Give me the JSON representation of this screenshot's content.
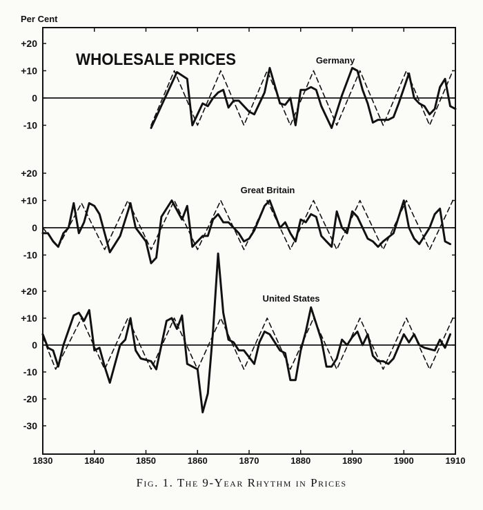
{
  "figure": {
    "caption": "Fig. 1. The 9-Year Rhythm in Prices",
    "title": "WHOLESALE PRICES",
    "y_unit_label": "Per Cent"
  },
  "colors": {
    "ink": "#111111",
    "paper": "#fbfbf8"
  },
  "chart_data": [
    {
      "type": "line",
      "panel": "Germany",
      "label": "Germany",
      "xlim": [
        1830,
        1910
      ],
      "ylim": [
        -15,
        25
      ],
      "ytick_labels": [
        "+20",
        "+10",
        "0",
        "-10"
      ],
      "yticks": [
        20,
        10,
        0,
        -10
      ],
      "series": [
        {
          "style": "solid",
          "x": [
            1851,
            1856,
            1858,
            1859,
            1861,
            1862,
            1863,
            1864,
            1865,
            1866,
            1867,
            1868,
            1870,
            1871,
            1873,
            1874,
            1876,
            1877,
            1878,
            1879,
            1880,
            1881,
            1882,
            1883,
            1884,
            1886,
            1888,
            1890,
            1891,
            1892,
            1893,
            1894,
            1895,
            1897,
            1898,
            1899,
            1901,
            1902,
            1903,
            1904,
            1905,
            1906,
            1907,
            1908,
            1909,
            1910
          ],
          "y": [
            -11,
            9.5,
            7,
            -10,
            -2,
            -3,
            0,
            2,
            3,
            -3.5,
            -1,
            -1,
            -5,
            -6,
            2,
            11,
            -2,
            -2.5,
            0,
            -10,
            3,
            3,
            4,
            3,
            -3,
            -11,
            1,
            11,
            10,
            3,
            -2,
            -9,
            -8,
            -8,
            -7,
            -2,
            9,
            0,
            -2,
            -3,
            -6,
            -4,
            4,
            7,
            -3,
            -4
          ]
        },
        {
          "style": "dashed",
          "x": [
            1851,
            1855.5,
            1860,
            1864.5,
            1869,
            1873.5,
            1878,
            1882.5,
            1887,
            1891.5,
            1896,
            1900.5,
            1905,
            1909.5
          ],
          "y": [
            -10,
            10,
            -10,
            10,
            -10,
            10,
            -10,
            10,
            -10,
            10,
            -10,
            10,
            -10,
            10
          ]
        }
      ]
    },
    {
      "type": "line",
      "panel": "Great Britain",
      "label": "Great Britain",
      "xlim": [
        1830,
        1910
      ],
      "ylim": [
        -15,
        25
      ],
      "ytick_labels": [
        "+20",
        "+10",
        "0",
        "-10"
      ],
      "yticks": [
        20,
        10,
        0,
        -10
      ],
      "series": [
        {
          "style": "solid",
          "x": [
            1830,
            1831,
            1832,
            1833,
            1834,
            1835,
            1836,
            1837,
            1838,
            1839,
            1840,
            1841,
            1843,
            1845,
            1847,
            1848,
            1850,
            1851,
            1852,
            1853,
            1855,
            1857,
            1858,
            1859,
            1861,
            1862,
            1863,
            1864,
            1865,
            1866,
            1867,
            1868,
            1869,
            1870,
            1871,
            1873,
            1874,
            1876,
            1877,
            1878,
            1879,
            1880,
            1881,
            1882,
            1883,
            1884,
            1885,
            1886,
            1887,
            1888,
            1889,
            1890,
            1891,
            1892,
            1893,
            1894,
            1895,
            1896,
            1898,
            1900,
            1901,
            1902,
            1903,
            1904,
            1905,
            1906,
            1907,
            1908,
            1909
          ],
          "y": [
            -2,
            -2,
            -5,
            -7,
            -2,
            0,
            9,
            -2,
            2,
            9,
            8,
            5,
            -9,
            -3,
            9,
            0,
            -5,
            -13,
            -11,
            4,
            10,
            3,
            8,
            -7,
            -3,
            -3,
            3,
            5,
            2,
            2,
            0,
            -2,
            -5,
            -4,
            -1,
            8,
            10,
            0,
            2,
            -2,
            -5,
            3,
            2,
            5,
            4,
            -3,
            -5,
            -7,
            6,
            0,
            -2,
            6,
            4,
            0,
            -4,
            -5,
            -7,
            -5,
            -2,
            10,
            0,
            -4,
            -6,
            -3,
            0,
            5,
            7,
            -5,
            -6
          ]
        },
        {
          "style": "dashed",
          "x": [
            1830,
            1833,
            1837.5,
            1842,
            1846.5,
            1851,
            1855.5,
            1860,
            1864.5,
            1869,
            1873.5,
            1878,
            1882.5,
            1887,
            1891.5,
            1896,
            1900.5,
            1905,
            1909.5
          ],
          "y": [
            0,
            -7,
            9,
            -8,
            10,
            -8,
            10,
            -8,
            10,
            -8,
            10,
            -8,
            10,
            -8,
            10,
            -8,
            10,
            -8,
            10
          ]
        }
      ]
    },
    {
      "type": "line",
      "panel": "United States",
      "label": "United States",
      "xlim": [
        1830,
        1910
      ],
      "ylim": [
        -35,
        30
      ],
      "ytick_labels": [
        "+20",
        "+10",
        "0",
        "-10",
        "-20",
        "-30"
      ],
      "yticks": [
        20,
        10,
        0,
        -10,
        -20,
        -30
      ],
      "series": [
        {
          "style": "solid",
          "x": [
            1830,
            1831,
            1832,
            1833,
            1834,
            1836,
            1837,
            1838,
            1839,
            1840,
            1841,
            1842,
            1843,
            1845,
            1846,
            1847,
            1848,
            1849,
            1851,
            1852,
            1854,
            1855,
            1856,
            1857,
            1858,
            1860,
            1861,
            1862,
            1863,
            1864,
            1865,
            1866,
            1867,
            1868,
            1869,
            1871,
            1872,
            1873,
            1874,
            1876,
            1877,
            1878,
            1879,
            1880,
            1881,
            1882,
            1883,
            1884,
            1885,
            1886,
            1887,
            1888,
            1889,
            1890,
            1891,
            1892,
            1893,
            1894,
            1895,
            1896,
            1897,
            1898,
            1900,
            1901,
            1902,
            1903,
            1904,
            1906,
            1907,
            1908,
            1909
          ],
          "y": [
            4,
            -1,
            -2,
            -8,
            0,
            11,
            12,
            9,
            13,
            -2,
            -1,
            -8,
            -14,
            0,
            2,
            10,
            -2,
            -5,
            -6,
            -9,
            9,
            10,
            6,
            11,
            -7,
            -9,
            -25,
            -18,
            5,
            34,
            12,
            2,
            1,
            -2,
            -2,
            -7,
            1,
            5,
            4,
            -2,
            -3,
            -13,
            -13,
            -2,
            5,
            14,
            8,
            2,
            -8,
            -8,
            -5,
            2,
            0,
            3,
            5,
            0,
            4,
            -4,
            -6,
            -6,
            -7,
            -5,
            4,
            1,
            4,
            0,
            -1,
            -2,
            2,
            -1,
            4
          ]
        },
        {
          "style": "dashed",
          "x": [
            1830,
            1832.5,
            1837.5,
            1842,
            1846.5,
            1851,
            1855.5,
            1860,
            1864.5,
            1869,
            1873.5,
            1878,
            1882.5,
            1887,
            1891.5,
            1896,
            1900.5,
            1905,
            1909.5
          ],
          "y": [
            3,
            -9,
            10,
            -9,
            10,
            -9,
            10,
            -9,
            10,
            -9,
            10,
            -9,
            10,
            -9,
            10,
            -9,
            10,
            -9,
            10
          ]
        }
      ]
    }
  ],
  "x_axis": {
    "ticks": [
      1830,
      1840,
      1850,
      1860,
      1870,
      1880,
      1890,
      1900,
      1910
    ],
    "tick_labels": [
      "1830",
      "1840",
      "1850",
      "1860",
      "1870",
      "1880",
      "1890",
      "1900",
      "1910"
    ]
  }
}
